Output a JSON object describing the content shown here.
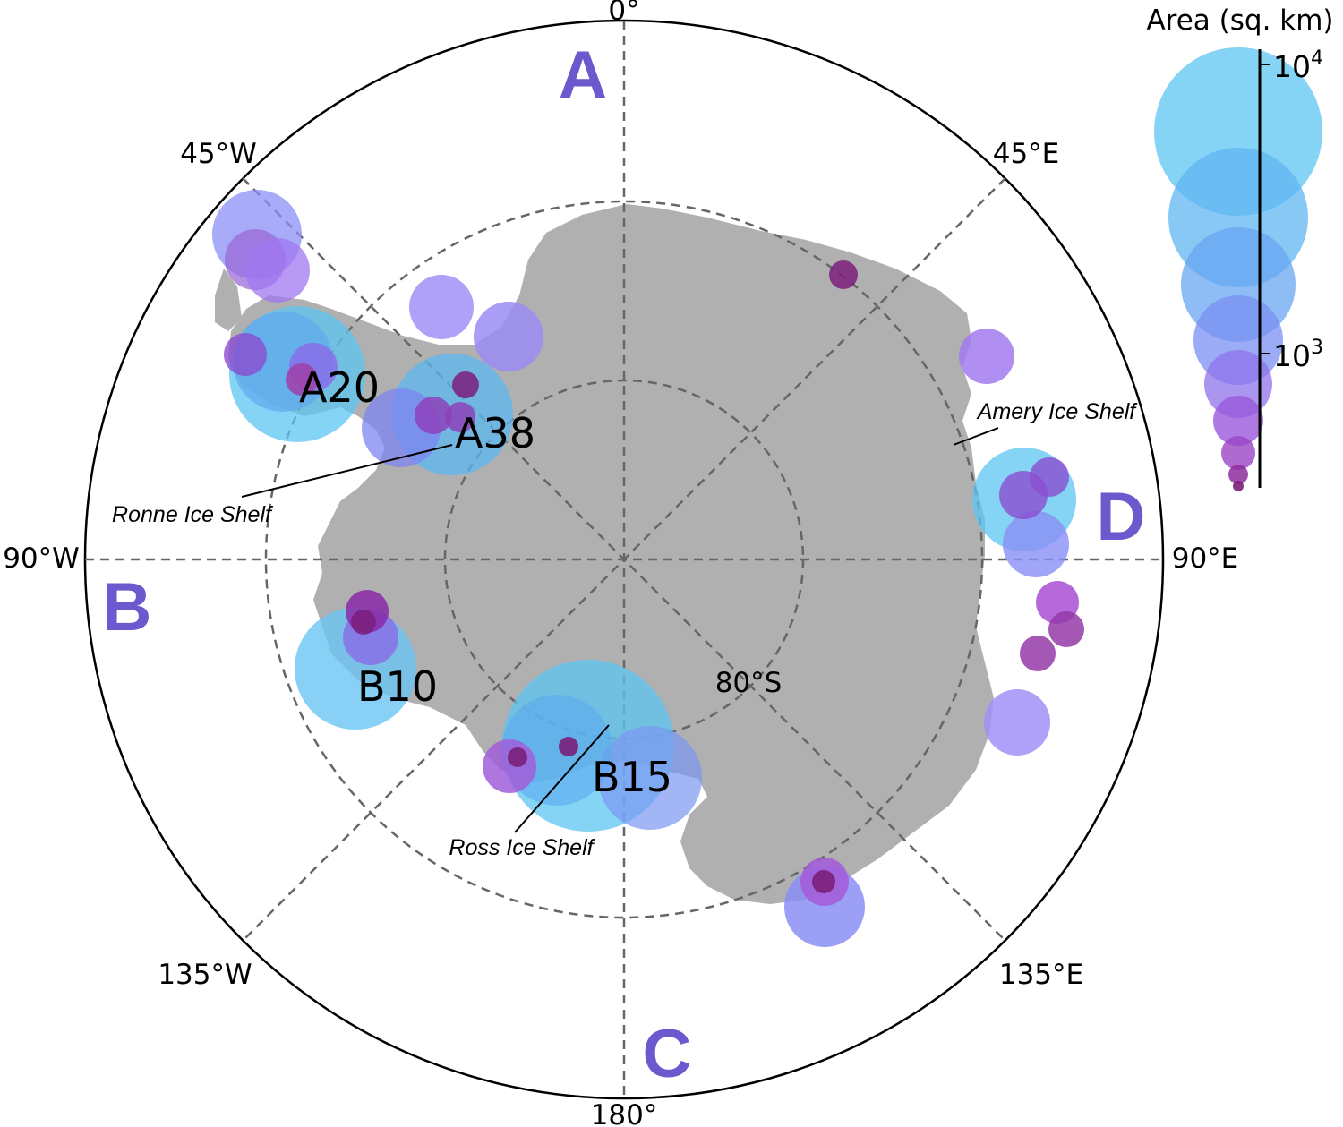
{
  "map": {
    "longitude_labels": {
      "north": "0°",
      "south": "180°",
      "west": "90°W",
      "east": "90°E",
      "nw": "45°W",
      "ne": "45°E",
      "sw": "135°W",
      "se": "135°E"
    },
    "latitude_label": "80°S",
    "sectors": {
      "a": "A",
      "b": "B",
      "c": "C",
      "d": "D"
    },
    "iceberg_labels": {
      "a20": "A20",
      "a38": "A38",
      "b10": "B10",
      "b15": "B15"
    },
    "shelves": {
      "ronne": "Ronne Ice Shelf",
      "ross": "Ross Ice Shelf",
      "amery": "Amery Ice Shelf"
    },
    "colors": {
      "land": "#b0b0b0",
      "grid": "#666666",
      "sector_label": "#6a5acd",
      "large_berg": "#5ec6f2",
      "small_berg": "#7b1f7a"
    }
  },
  "legend": {
    "title": "Area (sq. km)",
    "tick_high": "10",
    "tick_high_exp": "4",
    "tick_low": "10",
    "tick_low_exp": "3"
  },
  "icebergs": [
    {
      "id": "nw-1",
      "size": "m"
    },
    {
      "id": "nw-2",
      "size": "s"
    },
    {
      "id": "nw-3",
      "size": "s"
    },
    {
      "id": "a20-big",
      "size": "xl"
    },
    {
      "id": "a20-2",
      "size": "l"
    },
    {
      "id": "a20-3",
      "size": "m"
    },
    {
      "id": "a20-4",
      "size": "s"
    },
    {
      "id": "a20-5",
      "size": "xs"
    },
    {
      "id": "weddell-1",
      "size": "m"
    },
    {
      "id": "weddell-2",
      "size": "m"
    },
    {
      "id": "a38-big",
      "size": "l"
    },
    {
      "id": "a38-2",
      "size": "m"
    },
    {
      "id": "a38-3",
      "size": "xs"
    },
    {
      "id": "a38-4",
      "size": "xs"
    },
    {
      "id": "a38-5",
      "size": "xxs"
    },
    {
      "id": "ne-1",
      "size": "xxs"
    },
    {
      "id": "ne-2",
      "size": "s"
    },
    {
      "id": "d-big",
      "size": "l"
    },
    {
      "id": "d-2",
      "size": "s"
    },
    {
      "id": "d-3",
      "size": "s"
    },
    {
      "id": "d-4",
      "size": "xs"
    },
    {
      "id": "e-1",
      "size": "xs"
    },
    {
      "id": "e-2",
      "size": "xs"
    },
    {
      "id": "e-3",
      "size": "xs"
    },
    {
      "id": "e-4",
      "size": "s"
    },
    {
      "id": "b10-big",
      "size": "l"
    },
    {
      "id": "b10-2",
      "size": "s"
    },
    {
      "id": "b10-3",
      "size": "xs"
    },
    {
      "id": "b10-4",
      "size": "xxs"
    },
    {
      "id": "b15-big",
      "size": "xl"
    },
    {
      "id": "b15-2",
      "size": "l"
    },
    {
      "id": "b15-3",
      "size": "m"
    },
    {
      "id": "b15-4",
      "size": "s"
    },
    {
      "id": "b15-5",
      "size": "xxs"
    },
    {
      "id": "b15-6",
      "size": "xxs"
    },
    {
      "id": "se-1",
      "size": "m"
    },
    {
      "id": "se-2",
      "size": "s"
    },
    {
      "id": "se-3",
      "size": "xxs"
    }
  ]
}
